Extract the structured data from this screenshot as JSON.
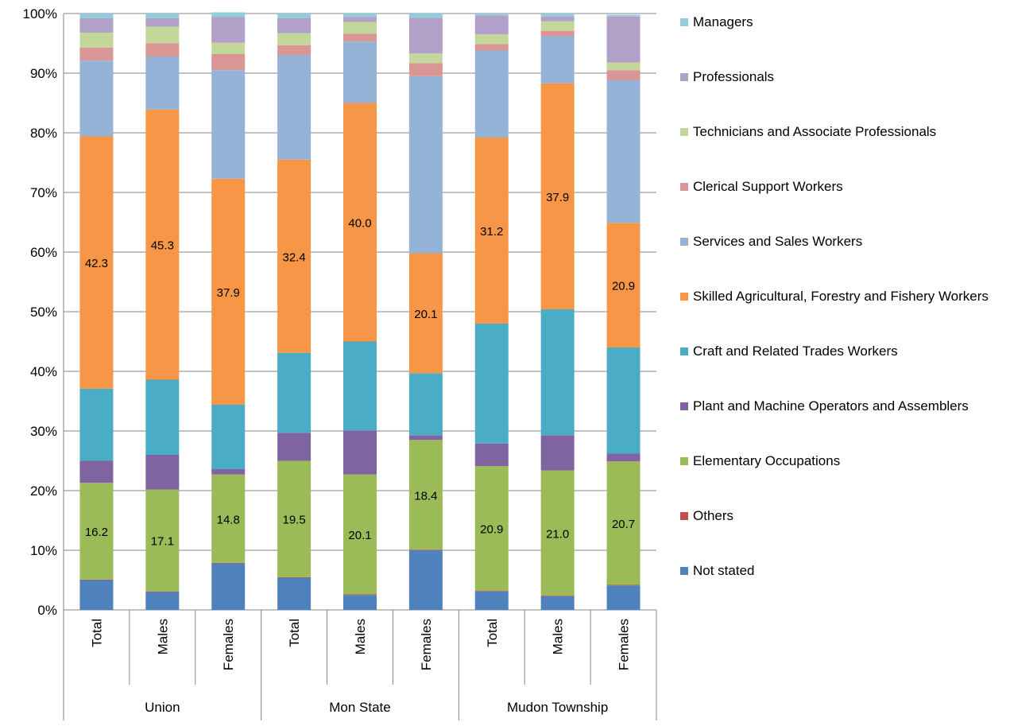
{
  "chart_data": {
    "type": "bar",
    "stacked": true,
    "percent_stacked": true,
    "categories": [
      "Total",
      "Males",
      "Females",
      "Total",
      "Males",
      "Females",
      "Total",
      "Males",
      "Females"
    ],
    "groups": [
      "Union",
      "Mon State",
      "Mudon Township"
    ],
    "y_ticks": [
      "0%",
      "10%",
      "20%",
      "30%",
      "40%",
      "50%",
      "60%",
      "70%",
      "80%",
      "90%",
      "100%"
    ],
    "ylim": [
      0,
      100
    ],
    "grid": true,
    "legend_position": "right",
    "series": [
      {
        "name": "Not stated",
        "color": "#4F81BD",
        "values": [
          5.0,
          3.0,
          7.8,
          5.4,
          2.5,
          10.0,
          3.1,
          2.3,
          4.1
        ],
        "labels": []
      },
      {
        "name": "Others",
        "color": "#C0504D",
        "values": [
          0.1,
          0.1,
          0.1,
          0.1,
          0.1,
          0.1,
          0.1,
          0.1,
          0.1
        ],
        "labels": []
      },
      {
        "name": "Elementary Occupations",
        "color": "#9BBB59",
        "values": [
          16.2,
          17.1,
          14.8,
          19.5,
          20.1,
          18.4,
          20.9,
          21.0,
          20.7
        ],
        "labels": [
          "16.2",
          "17.1",
          "14.8",
          "19.5",
          "20.1",
          "18.4",
          "20.9",
          "21.0",
          "20.7"
        ]
      },
      {
        "name": "Plant and Machine Operators and Assemblers",
        "color": "#8064A2",
        "values": [
          3.7,
          5.8,
          0.9,
          4.7,
          7.4,
          0.8,
          3.8,
          5.9,
          1.3
        ],
        "labels": []
      },
      {
        "name": "Craft and Related Trades Workers",
        "color": "#4BACC6",
        "values": [
          12.1,
          12.6,
          10.8,
          13.4,
          14.9,
          10.4,
          20.1,
          21.1,
          17.8
        ],
        "labels": []
      },
      {
        "name": "Skilled Agricultural, Forestry and Fishery Workers",
        "color": "#F79646",
        "values": [
          42.3,
          45.3,
          37.9,
          32.4,
          40.0,
          20.1,
          31.2,
          37.9,
          20.9
        ],
        "labels": [
          "42.3",
          "45.3",
          "37.9",
          "32.4",
          "40.0",
          "20.1",
          "31.2",
          "37.9",
          "20.9"
        ]
      },
      {
        "name": "Services and Sales Workers",
        "color": "#95B3D7",
        "values": [
          12.7,
          8.9,
          18.2,
          17.5,
          10.3,
          29.7,
          14.6,
          7.9,
          23.9
        ],
        "labels": []
      },
      {
        "name": "Clerical Support Workers",
        "color": "#DA9694",
        "values": [
          2.2,
          2.2,
          2.7,
          1.7,
          1.3,
          2.2,
          1.1,
          0.9,
          1.7
        ],
        "labels": []
      },
      {
        "name": "Technicians and Associate Professionals",
        "color": "#C4D79B",
        "values": [
          2.5,
          2.8,
          1.9,
          2.0,
          2.0,
          1.6,
          1.6,
          1.6,
          1.3
        ],
        "labels": []
      },
      {
        "name": "Professionals",
        "color": "#B1A0C7",
        "values": [
          2.4,
          1.4,
          4.3,
          2.5,
          0.8,
          6.0,
          3.2,
          0.8,
          7.7
        ],
        "labels": []
      },
      {
        "name": "Managers",
        "color": "#92CDDC",
        "values": [
          0.8,
          0.8,
          0.8,
          0.8,
          0.6,
          0.7,
          0.3,
          0.5,
          0.3
        ],
        "labels": []
      }
    ],
    "legend_order": [
      "Managers",
      "Professionals",
      "Technicians and Associate Professionals",
      "Clerical Support Workers",
      "Services and Sales Workers",
      "Skilled Agricultural, Forestry and Fishery Workers",
      "Craft and Related Trades Workers",
      "Plant and Machine Operators and Assemblers",
      "Elementary Occupations",
      "Others",
      "Not stated"
    ]
  }
}
